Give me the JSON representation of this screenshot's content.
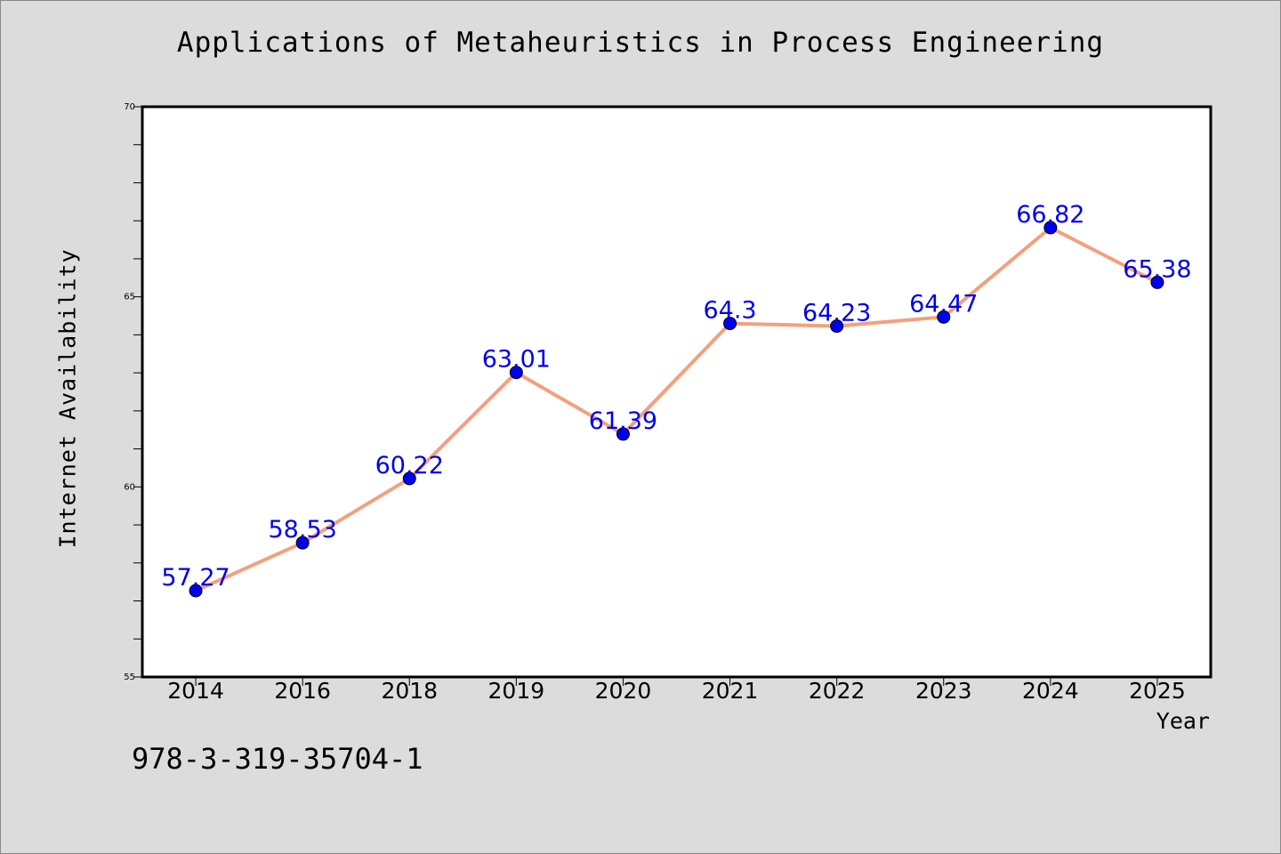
{
  "chart_data": {
    "type": "line",
    "title": "Applications of Metaheuristics in Process Engineering",
    "xlabel": "Year",
    "ylabel": "Internet Availability",
    "categories": [
      "2014",
      "2016",
      "2018",
      "2019",
      "2020",
      "2021",
      "2022",
      "2023",
      "2024",
      "2025"
    ],
    "series": [
      {
        "values": [
          57.27,
          58.53,
          60.22,
          63.01,
          61.39,
          64.3,
          64.23,
          64.47,
          66.82,
          65.38
        ],
        "data_labels": [
          "57.27",
          "58.53",
          "60.22",
          "63.01",
          "61.39",
          "64.3",
          "64.23",
          "64.47",
          "66.82",
          "65.38"
        ],
        "line_color": "#f4a07c",
        "marker_color": "#0000ee",
        "label_color": "#0000ee"
      }
    ],
    "ylim": [
      55,
      70
    ],
    "yticks": [
      55,
      60,
      65,
      70
    ],
    "ytick_labels": [
      "55",
      "60",
      "65",
      "70"
    ],
    "y_minor_step": 1,
    "grid": false,
    "legend": "none"
  },
  "footer": {
    "code": "978-3-319-35704-1"
  },
  "colors": {
    "background": "#dcdcdc",
    "plot_background": "#ffffff"
  }
}
